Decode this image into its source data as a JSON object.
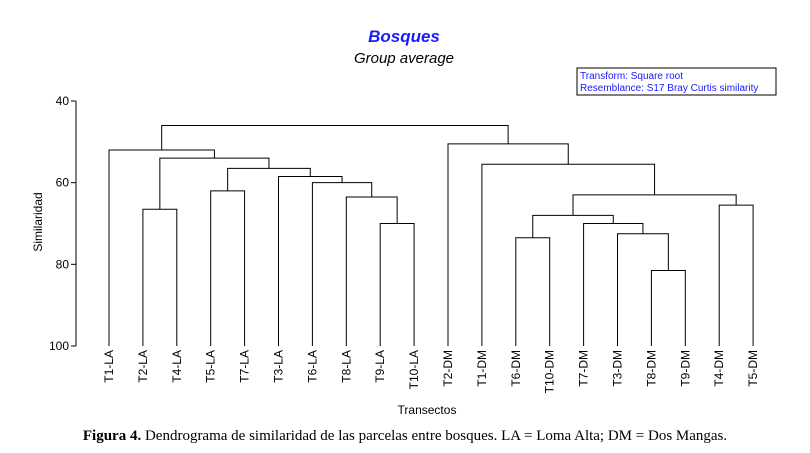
{
  "chart_data": {
    "type": "dendrogram",
    "title": "Bosques",
    "subtitle": "Group average",
    "xlabel": "Transectos",
    "ylabel": "Similaridad",
    "ylim": [
      40,
      100
    ],
    "yticks": [
      40,
      60,
      80,
      100
    ],
    "legend_box": {
      "lines": [
        "Transform: Square root",
        "Resemblance: S17 Bray Curtis similarity"
      ],
      "placement": "top-right"
    },
    "leaves": [
      "T1-LA",
      "T2-LA",
      "T4-LA",
      "T5-LA",
      "T7-LA",
      "T3-LA",
      "T6-LA",
      "T8-LA",
      "T9-LA",
      "T10-LA",
      "T2-DM",
      "T1-DM",
      "T6-DM",
      "T10-DM",
      "T7-DM",
      "T3-DM",
      "T8-DM",
      "T9-DM",
      "T4-DM",
      "T5-DM"
    ],
    "merges": [
      {
        "id": "m1",
        "children": [
          "T8-DM",
          "T9-DM"
        ],
        "similarity": 81.5
      },
      {
        "id": "m2",
        "children": [
          "T3-DM",
          "m1"
        ],
        "similarity": 72.5
      },
      {
        "id": "m3",
        "children": [
          "T7-DM",
          "m2"
        ],
        "similarity": 70
      },
      {
        "id": "m4",
        "children": [
          "T6-DM",
          "T10-DM"
        ],
        "similarity": 73.5
      },
      {
        "id": "m5",
        "children": [
          "m4",
          "m3"
        ],
        "similarity": 68
      },
      {
        "id": "m6",
        "children": [
          "T4-DM",
          "T5-DM"
        ],
        "similarity": 65.5
      },
      {
        "id": "m7",
        "children": [
          "m5",
          "m6"
        ],
        "similarity": 63
      },
      {
        "id": "m8",
        "children": [
          "T1-DM",
          "m7"
        ],
        "similarity": 55.5
      },
      {
        "id": "m9",
        "children": [
          "T2-DM",
          "m8"
        ],
        "similarity": 50.5
      },
      {
        "id": "m10",
        "children": [
          "T9-LA",
          "T10-LA"
        ],
        "similarity": 70
      },
      {
        "id": "m11",
        "children": [
          "T8-LA",
          "m10"
        ],
        "similarity": 63.5
      },
      {
        "id": "m12",
        "children": [
          "T6-LA",
          "m11"
        ],
        "similarity": 60
      },
      {
        "id": "m13",
        "children": [
          "T3-LA",
          "m12"
        ],
        "similarity": 58.5
      },
      {
        "id": "m14",
        "children": [
          "T5-LA",
          "T7-LA"
        ],
        "similarity": 62
      },
      {
        "id": "m15",
        "children": [
          "m14",
          "m13"
        ],
        "similarity": 56.5
      },
      {
        "id": "m16",
        "children": [
          "T2-LA",
          "T4-LA"
        ],
        "similarity": 66.5
      },
      {
        "id": "m17",
        "children": [
          "m16",
          "m15"
        ],
        "similarity": 54
      },
      {
        "id": "m18",
        "children": [
          "T1-LA",
          "m17"
        ],
        "similarity": 52
      },
      {
        "id": "m19",
        "children": [
          "m18",
          "m9"
        ],
        "similarity": 46
      }
    ],
    "colors": {
      "title": "#1a1aff",
      "lines": "#000000",
      "legend_text": "#1a1aff",
      "legend_border": "#000000"
    }
  },
  "caption": {
    "label": "Figura 4.",
    "text": " Dendrograma de similaridad de las parcelas entre bosques. LA = Loma Alta; DM = Dos Mangas."
  }
}
